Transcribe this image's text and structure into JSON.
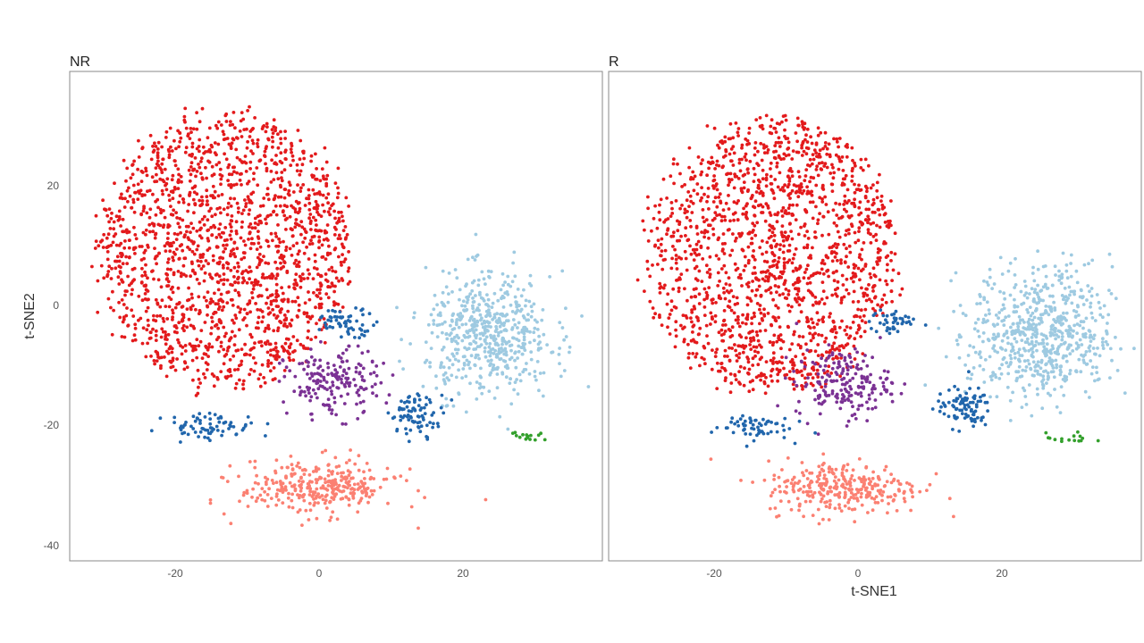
{
  "chart_data": {
    "type": "scatter",
    "xlabel": "t-SNE1",
    "ylabel": "t-SNE2",
    "xlim": [
      -35,
      40
    ],
    "ylim": [
      -42,
      38
    ],
    "x_ticks": [
      -20,
      0,
      20
    ],
    "y_ticks": [
      20,
      0,
      -20,
      -40
    ],
    "grid": false,
    "panels": [
      {
        "title": "NR",
        "clusters": [
          {
            "color": "#e31a1c",
            "center": [
              -13,
              9
            ],
            "spread": [
              12,
              15
            ],
            "count": 1700,
            "shape": "big"
          },
          {
            "color": "#9ecae1",
            "center": [
              24,
              -5
            ],
            "spread": [
              8,
              9
            ],
            "count": 550
          },
          {
            "color": "#fb8072",
            "center": [
              0,
              -30
            ],
            "spread": [
              10,
              4
            ],
            "count": 320
          },
          {
            "color": "#7b3294",
            "center": [
              2,
              -13
            ],
            "spread": [
              6,
              5
            ],
            "count": 180
          },
          {
            "color": "#2166ac",
            "center": [
              4,
              -3
            ],
            "spread": [
              4,
              2
            ],
            "count": 60
          },
          {
            "color": "#2166ac",
            "center": [
              -15,
              -20
            ],
            "spread": [
              6,
              2
            ],
            "count": 70
          },
          {
            "color": "#2166ac",
            "center": [
              14,
              -18
            ],
            "spread": [
              3.5,
              3
            ],
            "count": 80
          },
          {
            "color": "#33a02c",
            "center": [
              29,
              -21.5
            ],
            "spread": [
              2.5,
              0.8
            ],
            "count": 15
          }
        ]
      },
      {
        "title": "R",
        "clusters": [
          {
            "color": "#e31a1c",
            "center": [
              -12,
              8
            ],
            "spread": [
              12,
              15
            ],
            "count": 1600,
            "shape": "big"
          },
          {
            "color": "#9ecae1",
            "center": [
              26,
              -5
            ],
            "spread": [
              9,
              10
            ],
            "count": 650
          },
          {
            "color": "#fb8072",
            "center": [
              -2,
              -30
            ],
            "spread": [
              10,
              4
            ],
            "count": 300
          },
          {
            "color": "#7b3294",
            "center": [
              -2,
              -13
            ],
            "spread": [
              6,
              5
            ],
            "count": 190
          },
          {
            "color": "#2166ac",
            "center": [
              5,
              -3
            ],
            "spread": [
              3,
              2
            ],
            "count": 40
          },
          {
            "color": "#2166ac",
            "center": [
              -15,
              -20
            ],
            "spread": [
              5,
              2
            ],
            "count": 60
          },
          {
            "color": "#2166ac",
            "center": [
              15,
              -17
            ],
            "spread": [
              3.5,
              3
            ],
            "count": 90
          },
          {
            "color": "#33a02c",
            "center": [
              30,
              -22
            ],
            "spread": [
              3,
              0.8
            ],
            "count": 15
          }
        ]
      }
    ]
  }
}
